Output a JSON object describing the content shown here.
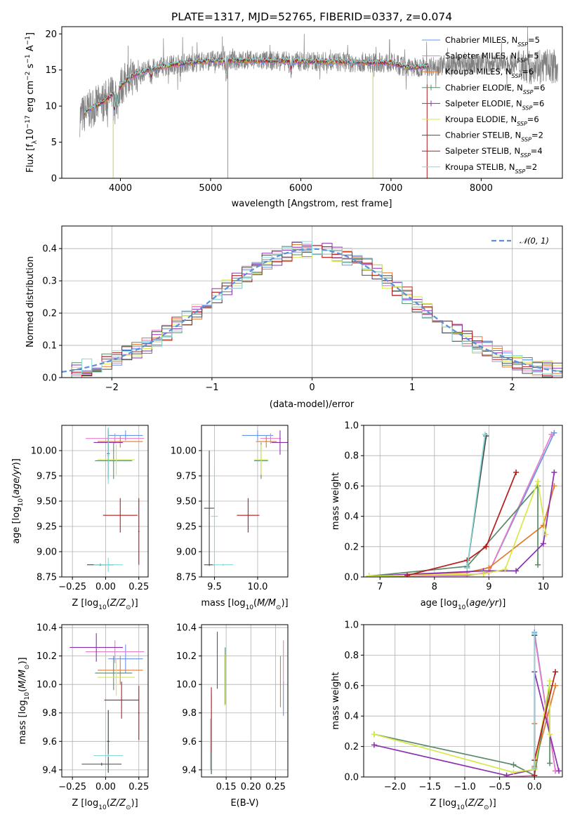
{
  "figure_title": "PLATE=1317, MJD=52765, FIBERID=0337, z=0.074",
  "colors": {
    "Chabrier MILES": "#6495ed",
    "Salpeter MILES": "#e87dc8",
    "Kroupa MILES": "#e07b2a",
    "Chabrier ELODIE": "#5a8a6a",
    "Salpeter ELODIE": "#8b2fb0",
    "Kroupa ELODIE": "#d8e84a",
    "Chabrier STELIB": "#4a4a4a",
    "Salpeter STELIB": "#b81c1c",
    "Kroupa STELIB": "#8ad8d8",
    "data": "#808080",
    "normal": "#5b8fd9"
  },
  "chart_data": [
    {
      "id": "spectrum",
      "type": "line",
      "title": "PLATE=1317, MJD=52765, FIBERID=0337, z=0.074",
      "xlabel": "wavelength [Angstrom, rest frame]",
      "ylabel": "Flux [f_λ 10^-17 erg cm^-2 s^-1 A^-1]",
      "xlim": [
        3350,
        8900
      ],
      "ylim": [
        0,
        21
      ],
      "xticks": [
        4000,
        5000,
        6000,
        7000,
        8000
      ],
      "yticks": [
        0,
        5,
        10,
        15,
        20
      ],
      "legend_position": "right",
      "legend": [
        {
          "base": "Chabrier MILES, N",
          "sub": "SSP",
          "tail": "=5",
          "color_key": "Chabrier MILES"
        },
        {
          "base": "Salpeter MILES, N",
          "sub": "SSP",
          "tail": "=5",
          "color_key": "Salpeter MILES"
        },
        {
          "base": "Kroupa MILES, N",
          "sub": "SSP",
          "tail": "=6",
          "color_key": "Kroupa MILES"
        },
        {
          "base": "Chabrier ELODIE, N",
          "sub": "SSP",
          "tail": "=6",
          "color_key": "Chabrier ELODIE"
        },
        {
          "base": "Salpeter ELODIE, N",
          "sub": "SSP",
          "tail": "=6",
          "color_key": "Salpeter ELODIE"
        },
        {
          "base": "Kroupa ELODIE, N",
          "sub": "SSP",
          "tail": "=6",
          "color_key": "Kroupa ELODIE"
        },
        {
          "base": "Chabrier STELIB, N",
          "sub": "SSP",
          "tail": "=2",
          "color_key": "Chabrier STELIB"
        },
        {
          "base": "Salpeter STELIB, N",
          "sub": "SSP",
          "tail": "=4",
          "color_key": "Salpeter STELIB"
        },
        {
          "base": "Kroupa STELIB, N",
          "sub": "SSP",
          "tail": "=2",
          "color_key": "Kroupa STELIB"
        }
      ],
      "continuum": [
        [
          3550,
          8.5
        ],
        [
          3650,
          9.5
        ],
        [
          3800,
          10.5
        ],
        [
          3950,
          12.0
        ],
        [
          4100,
          14.0
        ],
        [
          4300,
          15.0
        ],
        [
          4600,
          15.8
        ],
        [
          5000,
          16.3
        ],
        [
          5500,
          16.3
        ],
        [
          6000,
          16.2
        ],
        [
          6500,
          16.1
        ],
        [
          7000,
          16.0
        ],
        [
          7200,
          15.3
        ],
        [
          7500,
          15.6
        ],
        [
          8000,
          15.9
        ],
        [
          8500,
          15.8
        ],
        [
          8800,
          15.5
        ]
      ],
      "absorption_lines": [
        [
          3934,
          9.5
        ],
        [
          3968,
          10.0
        ],
        [
          4102,
          13.2
        ],
        [
          4227,
          14.3
        ],
        [
          4340,
          14.0
        ],
        [
          5175,
          14.3
        ],
        [
          5893,
          15.2
        ],
        [
          6563,
          15.6
        ],
        [
          8498,
          14.8
        ],
        [
          8542,
          14.5
        ],
        [
          8662,
          14.5
        ]
      ],
      "data_spikes": [
        3920,
        5190,
        6800,
        7400
      ],
      "data_start": 3550,
      "model_start": 3600
    },
    {
      "id": "residuals",
      "type": "histogram",
      "xlabel": "(data-model)/error",
      "ylabel": "Normed distribution",
      "xlim": [
        -2.5,
        2.5
      ],
      "ylim": [
        0,
        0.47
      ],
      "xticks": [
        -2,
        -1,
        0,
        1,
        2
      ],
      "yticks": [
        0.0,
        0.1,
        0.2,
        0.3,
        0.4
      ],
      "bin_width": 0.1,
      "legend": {
        "label": "𝒩(0, 1)",
        "position": "top-right"
      }
    },
    {
      "id": "age_vs_Z",
      "type": "scatter",
      "xlabel": "Z [log10(Z/Z⊙)]",
      "ylabel": "age [log10(age/yr)]",
      "xlim": [
        -0.33,
        0.32
      ],
      "ylim": [
        8.75,
        10.25
      ],
      "xticks": [
        -0.25,
        0.0,
        0.25
      ],
      "yticks": [
        8.75,
        9.0,
        9.25,
        9.5,
        9.75,
        10.0
      ],
      "points": [
        {
          "model": "Chabrier MILES",
          "x": 0.15,
          "xerr": 0.13,
          "y": 10.15,
          "yerr": 0.05
        },
        {
          "model": "Salpeter MILES",
          "x": 0.07,
          "xerr": 0.22,
          "y": 10.12,
          "yerr": 0.05
        },
        {
          "model": "Kroupa MILES",
          "x": 0.11,
          "xerr": 0.17,
          "y": 10.09,
          "yerr": 0.06
        },
        {
          "model": "Chabrier ELODIE",
          "x": 0.06,
          "xerr": 0.14,
          "y": 9.9,
          "yerr": 0.18
        },
        {
          "model": "Salpeter ELODIE",
          "x": 0.02,
          "xerr": 0.11,
          "y": 10.08,
          "yerr": 0.12
        },
        {
          "model": "Kroupa ELODIE",
          "x": 0.08,
          "xerr": 0.14,
          "y": 9.91,
          "yerr": 0.15
        },
        {
          "model": "Chabrier STELIB",
          "x": 0.02,
          "xerr": 0.01,
          "y": 9.97,
          "yerr": 0.25
        },
        {
          "model": "Salpeter STELIB",
          "x": 0.11,
          "xerr": 0.13,
          "y": 9.36,
          "yerr": 0.17
        },
        {
          "model": "Kroupa STELIB",
          "x": 0.02,
          "xerr": 0.01,
          "y": 9.95,
          "yerr": 0.28
        },
        {
          "model": "Chabrier STELIB",
          "x": -0.04,
          "xerr": 0.1,
          "y": 8.87,
          "yerr": 0.01
        },
        {
          "model": "Kroupa STELIB",
          "x": 0.02,
          "xerr": 0.11,
          "y": 8.87,
          "yerr": 0.07
        },
        {
          "model": "Salpeter STELIB",
          "x": 0.25,
          "xerr": 0.005,
          "y": 9.2,
          "yerr": 0.33
        }
      ]
    },
    {
      "id": "age_vs_mass",
      "type": "scatter",
      "xlabel": "mass [log10(M/M⊙)]",
      "ylabel": "",
      "xlim": [
        9.35,
        10.35
      ],
      "ylim": [
        8.75,
        10.25
      ],
      "xticks": [
        9.5,
        10.0
      ],
      "yticks": [
        8.75,
        9.0,
        9.25,
        9.5,
        9.75,
        10.0
      ],
      "points": [
        {
          "model": "Chabrier MILES",
          "x": 10.0,
          "xerr": 0.18,
          "y": 10.15,
          "yerr": 0.05
        },
        {
          "model": "Salpeter MILES",
          "x": 10.15,
          "xerr": 0.12,
          "y": 10.12,
          "yerr": 0.05
        },
        {
          "model": "Kroupa MILES",
          "x": 10.1,
          "xerr": 0.12,
          "y": 10.09,
          "yerr": 0.06
        },
        {
          "model": "Chabrier ELODIE",
          "x": 10.04,
          "xerr": 0.08,
          "y": 9.9,
          "yerr": 0.18
        },
        {
          "model": "Salpeter ELODIE",
          "x": 10.26,
          "xerr": 0.1,
          "y": 10.08,
          "yerr": 0.12
        },
        {
          "model": "Kroupa ELODIE",
          "x": 10.04,
          "xerr": 0.08,
          "y": 9.91,
          "yerr": 0.15
        },
        {
          "model": "Chabrier STELIB",
          "x": 9.44,
          "xerr": 0.06,
          "y": 9.43,
          "yerr": 0.57
        },
        {
          "model": "Salpeter STELIB",
          "x": 9.89,
          "xerr": 0.13,
          "y": 9.36,
          "yerr": 0.17
        },
        {
          "model": "Kroupa STELIB",
          "x": 9.5,
          "xerr": 0.04,
          "y": 9.35,
          "yerr": 0.5
        },
        {
          "model": "Chabrier STELIB",
          "x": 9.44,
          "xerr": 0.06,
          "y": 8.87,
          "yerr": 0.01
        },
        {
          "model": "Kroupa STELIB",
          "x": 9.6,
          "xerr": 0.12,
          "y": 8.87,
          "yerr": 0.01
        }
      ]
    },
    {
      "id": "weight_vs_age",
      "type": "line",
      "xlabel": "age [log10(age/yr)]",
      "ylabel": "mass weight",
      "xlim": [
        6.7,
        10.35
      ],
      "ylim": [
        0,
        1.0
      ],
      "xticks": [
        7,
        8,
        9,
        10
      ],
      "yticks": [
        0.0,
        0.2,
        0.4,
        0.6,
        0.8,
        1.0
      ],
      "series": [
        {
          "model": "Chabrier MILES",
          "x": [
            6.8,
            8.6,
            9.0,
            10.2
          ],
          "y": [
            0.005,
            0.01,
            0.03,
            0.95
          ]
        },
        {
          "model": "Salpeter MILES",
          "x": [
            6.8,
            8.6,
            9.0,
            10.15
          ],
          "y": [
            0.005,
            0.01,
            0.03,
            0.94
          ]
        },
        {
          "model": "Kroupa MILES",
          "x": [
            6.8,
            8.6,
            9.0,
            10.0,
            10.2
          ],
          "y": [
            0.005,
            0.03,
            0.06,
            0.34,
            0.6
          ]
        },
        {
          "model": "Chabrier ELODIE",
          "x": [
            6.8,
            8.6,
            9.9,
            9.9
          ],
          "y": [
            0.005,
            0.07,
            0.6,
            0.08
          ]
        },
        {
          "model": "Salpeter ELODIE",
          "x": [
            6.8,
            8.9,
            9.5,
            10.0,
            10.2
          ],
          "y": [
            0.005,
            0.04,
            0.04,
            0.22,
            0.69
          ]
        },
        {
          "model": "Kroupa ELODIE",
          "x": [
            6.8,
            8.9,
            9.3,
            9.9,
            10.05
          ],
          "y": [
            0.005,
            0.02,
            0.05,
            0.63,
            0.28
          ]
        },
        {
          "model": "Chabrier STELIB",
          "x": [
            8.6,
            8.95
          ],
          "y": [
            0.06,
            0.93
          ]
        },
        {
          "model": "Salpeter STELIB",
          "x": [
            7.5,
            8.6,
            8.95,
            9.5
          ],
          "y": [
            0.01,
            0.11,
            0.2,
            0.69
          ]
        },
        {
          "model": "Kroupa STELIB",
          "x": [
            8.6,
            8.93
          ],
          "y": [
            0.06,
            0.94
          ]
        }
      ]
    },
    {
      "id": "mass_vs_Z",
      "type": "scatter",
      "xlabel": "Z [log10(Z/Z⊙)]",
      "ylabel": "mass [log10(M/M⊙)]",
      "xlim": [
        -0.33,
        0.32
      ],
      "ylim": [
        9.35,
        10.42
      ],
      "xticks": [
        -0.25,
        0.0,
        0.25
      ],
      "yticks": [
        9.4,
        9.6,
        9.8,
        10.0,
        10.2,
        10.4
      ],
      "points": [
        {
          "model": "Chabrier MILES",
          "x": 0.15,
          "xerr": 0.13,
          "y": 10.18,
          "yerr": 0.1
        },
        {
          "model": "Salpeter MILES",
          "x": 0.07,
          "xerr": 0.22,
          "y": 10.23,
          "yerr": 0.08
        },
        {
          "model": "Kroupa MILES",
          "x": 0.11,
          "xerr": 0.17,
          "y": 10.1,
          "yerr": 0.1
        },
        {
          "model": "Chabrier ELODIE",
          "x": 0.06,
          "xerr": 0.14,
          "y": 10.08,
          "yerr": 0.12
        },
        {
          "model": "Salpeter ELODIE",
          "x": -0.07,
          "xerr": 0.2,
          "y": 10.26,
          "yerr": 0.1
        },
        {
          "model": "Kroupa ELODIE",
          "x": 0.08,
          "xerr": 0.14,
          "y": 10.05,
          "yerr": 0.13
        },
        {
          "model": "Chabrier STELIB",
          "x": -0.03,
          "xerr": 0.15,
          "y": 9.44,
          "yerr": 0.01
        },
        {
          "model": "Salpeter STELIB",
          "x": 0.12,
          "xerr": 0.13,
          "y": 9.89,
          "yerr": 0.13
        },
        {
          "model": "Kroupa STELIB",
          "x": 0.02,
          "xerr": 0.01,
          "y": 9.6,
          "yerr": 0.22
        },
        {
          "model": "Chabrier STELIB",
          "x": 0.02,
          "xerr": 0.01,
          "y": 9.6,
          "yerr": 0.22
        },
        {
          "model": "Kroupa STELIB",
          "x": 0.02,
          "xerr": 0.11,
          "y": 9.5,
          "yerr": 0.01
        },
        {
          "model": "Salpeter STELIB",
          "x": 0.25,
          "xerr": 0.005,
          "y": 9.8,
          "yerr": 0.19
        }
      ]
    },
    {
      "id": "mass_vs_EBV",
      "type": "scatter",
      "xlabel": "E(B-V)",
      "ylabel": "",
      "xlim": [
        0.1,
        0.275
      ],
      "ylim": [
        9.35,
        10.42
      ],
      "xticks": [
        0.15,
        0.2,
        0.25
      ],
      "yticks": [
        9.4,
        9.6,
        9.8,
        10.0,
        10.2,
        10.4
      ],
      "points": [
        {
          "model": "Chabrier MILES",
          "x": 0.266,
          "xerr": 0.0,
          "y": 9.9,
          "yerr": 0.12
        },
        {
          "model": "Salpeter MILES",
          "x": 0.266,
          "xerr": 0.0,
          "y": 10.15,
          "yerr": 0.16
        },
        {
          "model": "Kroupa MILES",
          "x": 0.26,
          "xerr": 0.0,
          "y": 10.02,
          "yerr": 0.18
        },
        {
          "model": "Chabrier ELODIE",
          "x": 0.148,
          "xerr": 0.0,
          "y": 10.06,
          "yerr": 0.2
        },
        {
          "model": "Salpeter ELODIE",
          "x": 0.132,
          "xerr": 0.0,
          "y": 10.17,
          "yerr": 0.2
        },
        {
          "model": "Kroupa ELODIE",
          "x": 0.147,
          "xerr": 0.0,
          "y": 10.03,
          "yerr": 0.18
        },
        {
          "model": "Chabrier STELIB",
          "x": 0.12,
          "xerr": 0.0,
          "y": 9.65,
          "yerr": 0.28
        },
        {
          "model": "Salpeter STELIB",
          "x": 0.12,
          "xerr": 0.0,
          "y": 9.75,
          "yerr": 0.23
        },
        {
          "model": "Kroupa STELIB",
          "x": 0.118,
          "xerr": 0.0,
          "y": 9.58,
          "yerr": 0.18
        }
      ]
    },
    {
      "id": "weight_vs_Z",
      "type": "line",
      "xlabel": "Z [log10(Z/Z⊙)]",
      "ylabel": "mass weight",
      "xlim": [
        -2.45,
        0.4
      ],
      "ylim": [
        0,
        1.0
      ],
      "xticks": [
        -2.0,
        -1.5,
        -1.0,
        -0.5,
        0.0
      ],
      "yticks": [
        0.0,
        0.2,
        0.4,
        0.6,
        0.8,
        1.0
      ],
      "series": [
        {
          "model": "Chabrier MILES",
          "x": [
            0.0,
            0.3
          ],
          "y": [
            0.95,
            0.04
          ]
        },
        {
          "model": "Salpeter MILES",
          "x": [
            -0.4,
            0.0,
            0.0,
            0.3
          ],
          "y": [
            0.0,
            0.01,
            0.93,
            0.04
          ]
        },
        {
          "model": "Kroupa MILES",
          "x": [
            0.0,
            0.0,
            0.3
          ],
          "y": [
            0.35,
            0.07,
            0.6
          ]
        },
        {
          "model": "Chabrier ELODIE",
          "x": [
            -2.3,
            -0.3,
            0.0,
            0.22,
            0.22
          ],
          "y": [
            0.28,
            0.08,
            0.01,
            0.6,
            0.09
          ]
        },
        {
          "model": "Salpeter ELODIE",
          "x": [
            -2.3,
            -0.4,
            0.0,
            0.0,
            0.35
          ],
          "y": [
            0.21,
            0.01,
            0.05,
            0.69,
            0.04
          ]
        },
        {
          "model": "Kroupa ELODIE",
          "x": [
            -2.3,
            -0.3,
            0.0,
            0.22,
            0.22
          ],
          "y": [
            0.28,
            0.03,
            0.05,
            0.63,
            0.28
          ]
        },
        {
          "model": "Chabrier STELIB",
          "x": [
            0.0,
            0.0
          ],
          "y": [
            0.06,
            0.93
          ]
        },
        {
          "model": "Salpeter STELIB",
          "x": [
            0.0,
            0.0,
            0.3
          ],
          "y": [
            0.01,
            0.11,
            0.69
          ]
        },
        {
          "model": "Kroupa STELIB",
          "x": [
            0.0,
            0.0
          ],
          "y": [
            0.06,
            0.94
          ]
        }
      ]
    }
  ]
}
